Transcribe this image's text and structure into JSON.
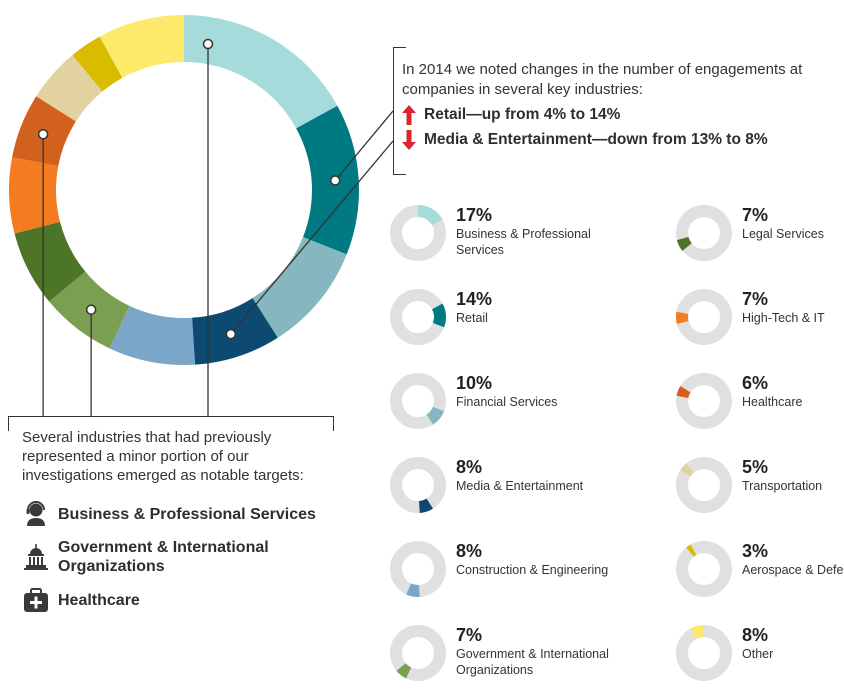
{
  "chart_data": {
    "type": "pie",
    "segments": [
      {
        "name": "Business & Professional Services",
        "percent": "17%",
        "value": 17,
        "color": "#a6dbdc"
      },
      {
        "name": "Retail",
        "percent": "14%",
        "value": 14,
        "color": "#007a82"
      },
      {
        "name": "Financial Services",
        "percent": "10%",
        "value": 10,
        "color": "#86b6c0"
      },
      {
        "name": "Media & Entertainment",
        "percent": "8%",
        "value": 8,
        "color": "#0c4a72"
      },
      {
        "name": "Construction & Engineering",
        "percent": "8%",
        "value": 8,
        "color": "#7ba6c8"
      },
      {
        "name": "Government & International Organizations",
        "percent": "7%",
        "value": 7,
        "color": "#7a9f50"
      },
      {
        "name": "Legal Services",
        "percent": "7%",
        "value": 7,
        "color": "#4d7528"
      },
      {
        "name": "High-Tech & IT",
        "percent": "7%",
        "value": 7,
        "color": "#f47b20"
      },
      {
        "name": "Healthcare",
        "percent": "6%",
        "value": 6,
        "color": "#d3611e"
      },
      {
        "name": "Transportation",
        "percent": "5%",
        "value": 5,
        "color": "#e2d2a0"
      },
      {
        "name": "Aerospace & Defense",
        "percent": "3%",
        "value": 3,
        "color": "#d9bb00"
      },
      {
        "name": "Other",
        "percent": "8%",
        "value": 8,
        "color": "#fde96a"
      }
    ],
    "mini_track_color": "#e0e0e0"
  },
  "top_callout": {
    "intro": "In 2014 we noted changes in the number of engagements at companies in several key industries:",
    "up_text": "Retail—up from 4% to 14%",
    "down_text": "Media & Entertainment—down from 13% to 8%",
    "arrow_color": "#d7262e"
  },
  "bottom_callout": {
    "intro": "Several industries that had previously represented a minor portion of our investigations emerged as notable targets:",
    "targets": [
      {
        "label": "Business & Professional Services",
        "icon": "person-headset-icon"
      },
      {
        "label": "Government & International Organizations",
        "icon": "capitol-building-icon"
      },
      {
        "label": "Healthcare",
        "icon": "medical-kit-icon"
      }
    ]
  }
}
